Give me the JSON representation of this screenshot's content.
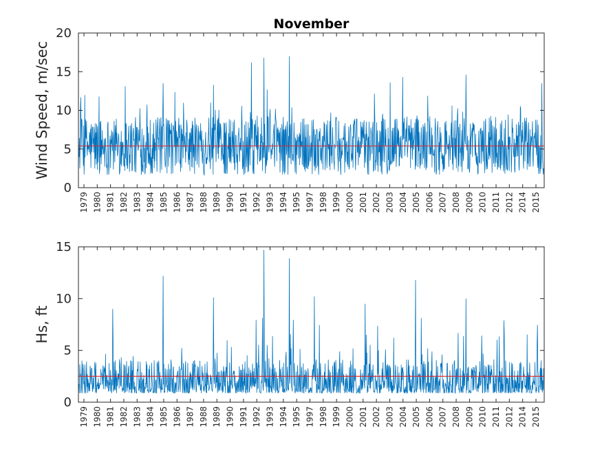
{
  "chart_data": [
    {
      "type": "line",
      "title": "November",
      "ylabel": "Wind Speed, m/sec",
      "xlabel": "",
      "ylim": [
        0,
        20
      ],
      "yticks": [
        "0",
        "5",
        "10",
        "15",
        "20"
      ],
      "xticklabels": [
        "1979",
        "1980",
        "1981",
        "1982",
        "1983",
        "1984",
        "1985",
        "1986",
        "1987",
        "1988",
        "1989",
        "1990",
        "1991",
        "1992",
        "1993",
        "1994",
        "1995",
        "1997",
        "1998",
        "1999",
        "2000",
        "2001",
        "2002",
        "2003",
        "2004",
        "2005",
        "2006",
        "2007",
        "2008",
        "2009",
        "2010",
        "2011",
        "2012",
        "2014",
        "2015"
      ],
      "grid": false,
      "reference_line": {
        "y": 5.4,
        "color": "#d62728"
      },
      "series": [
        {
          "color": "#0072bd",
          "base": 5.4,
          "min": 0.2,
          "max": 17.0,
          "peaks": [
            {
              "year": 1992,
              "value": 16.2
            },
            {
              "year": 1993,
              "value": 16.8
            },
            {
              "year": 1995,
              "value": 17.0
            },
            {
              "year": 1982,
              "value": 13.1
            },
            {
              "year": 1985,
              "value": 13.5
            },
            {
              "year": 1989,
              "value": 13.3
            },
            {
              "year": 2003,
              "value": 13.6
            },
            {
              "year": 2004,
              "value": 14.3
            },
            {
              "year": 2009,
              "value": 14.6
            },
            {
              "year": 2015,
              "value": 13.5
            }
          ]
        }
      ]
    },
    {
      "type": "line",
      "title": "",
      "ylabel": "Hs, ft",
      "xlabel": "",
      "ylim": [
        0,
        15
      ],
      "yticks": [
        "0",
        "5",
        "10",
        "15"
      ],
      "xticklabels": [
        "1979",
        "1980",
        "1981",
        "1982",
        "1983",
        "1984",
        "1985",
        "1986",
        "1987",
        "1988",
        "1989",
        "1990",
        "1991",
        "1992",
        "1993",
        "1994",
        "1995",
        "1997",
        "1998",
        "1999",
        "2000",
        "2001",
        "2002",
        "2003",
        "2004",
        "2005",
        "2006",
        "2007",
        "2008",
        "2009",
        "2010",
        "2011",
        "2012",
        "2014",
        "2015"
      ],
      "grid": false,
      "reference_line": {
        "y": 2.5,
        "color": "#d62728"
      },
      "series": [
        {
          "color": "#0072bd",
          "base": 2.5,
          "min": 0.1,
          "max": 14.7,
          "peaks": [
            {
              "year": 1993,
              "value": 14.7
            },
            {
              "year": 1995,
              "value": 13.9
            },
            {
              "year": 1985,
              "value": 12.2
            },
            {
              "year": 2005,
              "value": 11.8
            },
            {
              "year": 1989,
              "value": 10.1
            },
            {
              "year": 2009,
              "value": 10.0
            },
            {
              "year": 1997,
              "value": 10.2
            },
            {
              "year": 1981,
              "value": 9.0
            },
            {
              "year": 2001,
              "value": 9.5
            },
            {
              "year": 2012,
              "value": 7.9
            }
          ]
        }
      ]
    }
  ]
}
